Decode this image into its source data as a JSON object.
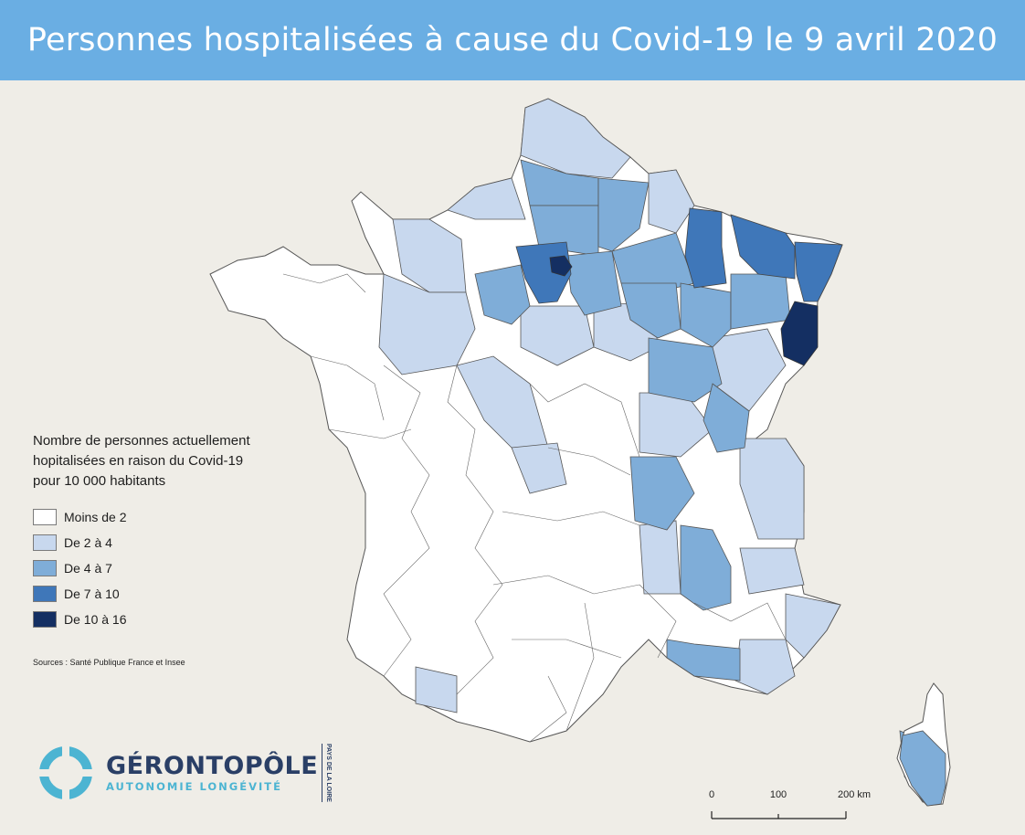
{
  "title": "Personnes hospitalisées à cause du Covid-19 le 9 avril 2020",
  "legend": {
    "title": "Nombre de personnes actuellement\nhopitalisées en raison du Covid-19\npour 10 000 habitants",
    "items": [
      {
        "label": "Moins de 2",
        "color": "#ffffff"
      },
      {
        "label": "De 2 à 4",
        "color": "#c8d8ee"
      },
      {
        "label": "De 4 à 7",
        "color": "#7fadd8"
      },
      {
        "label": "De 7 à 10",
        "color": "#3f77b9"
      },
      {
        "label": "De 10 à 16",
        "color": "#142f62"
      }
    ]
  },
  "sources": "Sources : Santé Publique France et Insee",
  "logo": {
    "name": "GÉRONTOPÔLE",
    "tagline": "AUTONOMIE LONGÉVITÉ",
    "side": "PAYS DE LA LOIRE"
  },
  "scale": {
    "ticks": [
      "0",
      "100",
      "200 km"
    ]
  }
}
